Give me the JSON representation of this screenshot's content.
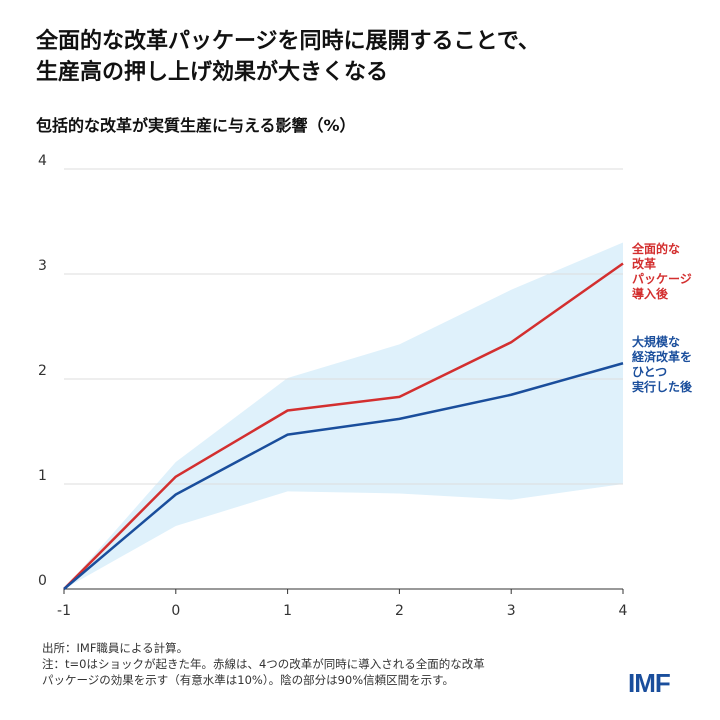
{
  "title_line1": "全面的な改革パッケージを同時に展開することで、",
  "title_line2": "生産高の押し上げ効果が大きくなる",
  "chart_data": {
    "type": "line",
    "title": "全面的な改革パッケージを同時に展開することで、生産高の押し上げ効果が大きくなる",
    "subtitle": "包括的な改革が実質生産に与える影響（%）",
    "x": [
      -1,
      0,
      1,
      2,
      3,
      4
    ],
    "xlim": [
      -1,
      4
    ],
    "ylim": [
      0,
      4
    ],
    "yticks": [
      0,
      1,
      2,
      3,
      4
    ],
    "grid": true,
    "series": [
      {
        "name": "全面的な改革パッケージ導入後",
        "label_lines": [
          "全面的な",
          "改革",
          "パッケージ",
          "導入後"
        ],
        "color": "#d32f2f",
        "values": [
          0,
          1.07,
          1.7,
          1.83,
          2.35,
          3.1
        ]
      },
      {
        "name": "大規模な経済改革をひとつ実行した後",
        "label_lines": [
          "大規模な",
          "経済改革を",
          "ひとつ",
          "実行した後"
        ],
        "color": "#1a4e9c",
        "values": [
          0,
          0.9,
          1.47,
          1.62,
          1.85,
          2.15
        ]
      }
    ],
    "band": {
      "color": "#dff1fb",
      "upper": [
        0,
        1.21,
        2.01,
        2.33,
        2.85,
        3.3
      ],
      "lower": [
        0,
        0.6,
        0.93,
        0.91,
        0.85,
        1.0
      ]
    }
  },
  "notes": {
    "source": "出所：IMF職員による計算。",
    "note1": "注：t=0はショックが起きた年。赤線は、4つの改革が同時に導入される全面的な改革",
    "note2": "パッケージの効果を示す（有意水準は10%）。陰の部分は90%信頼区間を示す。"
  },
  "logo": "IMF"
}
